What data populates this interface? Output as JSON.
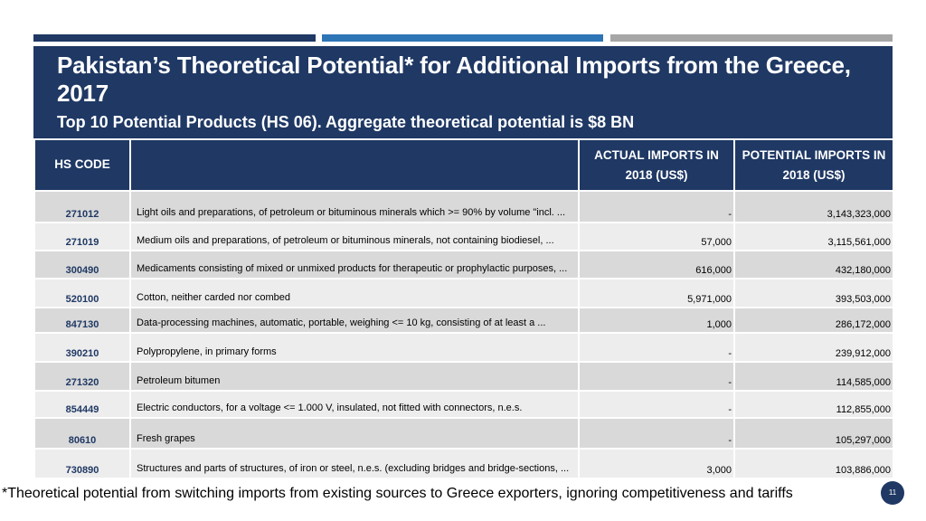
{
  "header": {
    "title": "Pakistan’s Theoretical Potential* for Additional Imports from the Greece, 2017",
    "subtitle": "Top 10 Potential Products (HS 06). Aggregate theoretical potential is $8 BN"
  },
  "colors": {
    "navy": "#1f3864",
    "accent_blue": "#2e75b6",
    "accent_gray": "#a6a6a6"
  },
  "table": {
    "columns": {
      "hs_code": "HS CODE",
      "description": "",
      "actual_line1": "ACTUAL IMPORTS IN",
      "actual_line2": "2018 (US$)",
      "potential_line1": "POTENTIAL IMPORTS IN",
      "potential_line2": "2018 (US$)"
    },
    "rows": [
      {
        "code": "271012",
        "desc": "Light oils and preparations, of petroleum or bituminous minerals which >= 90% by volume \"incl. ...",
        "actual": "-",
        "potential": "3,143,323,000"
      },
      {
        "code": "271019",
        "desc": "Medium oils and preparations, of petroleum or bituminous minerals, not containing biodiesel, ...",
        "actual": "57,000",
        "potential": "3,115,561,000"
      },
      {
        "code": "300490",
        "desc": "Medicaments consisting of mixed or unmixed products for therapeutic or prophylactic purposes, ...",
        "actual": "616,000",
        "potential": "432,180,000"
      },
      {
        "code": "520100",
        "desc": "Cotton, neither carded nor combed",
        "actual": "5,971,000",
        "potential": "393,503,000"
      },
      {
        "code": "847130",
        "desc": "Data-processing machines, automatic, portable, weighing <= 10 kg, consisting of at least a ...",
        "actual": "1,000",
        "potential": "286,172,000"
      },
      {
        "code": "390210",
        "desc": "Polypropylene, in primary forms",
        "actual": "-",
        "potential": "239,912,000"
      },
      {
        "code": "271320",
        "desc": "Petroleum bitumen",
        "actual": "-",
        "potential": "114,585,000"
      },
      {
        "code": "854449",
        "desc": "Electric conductors, for a voltage <= 1.000 V, insulated, not fitted with connectors, n.e.s.",
        "actual": "-",
        "potential": "112,855,000"
      },
      {
        "code": "80610",
        "desc": "Fresh grapes",
        "actual": "-",
        "potential": "105,297,000"
      },
      {
        "code": "730890",
        "desc": "Structures and parts of structures, of iron or steel, n.e.s. (excluding bridges and bridge-sections, ...",
        "actual": "3,000",
        "potential": "103,886,000"
      }
    ]
  },
  "footnote": "*Theoretical potential from switching imports from existing sources to Greece exporters, ignoring competitiveness and tariffs",
  "page_number": "11"
}
